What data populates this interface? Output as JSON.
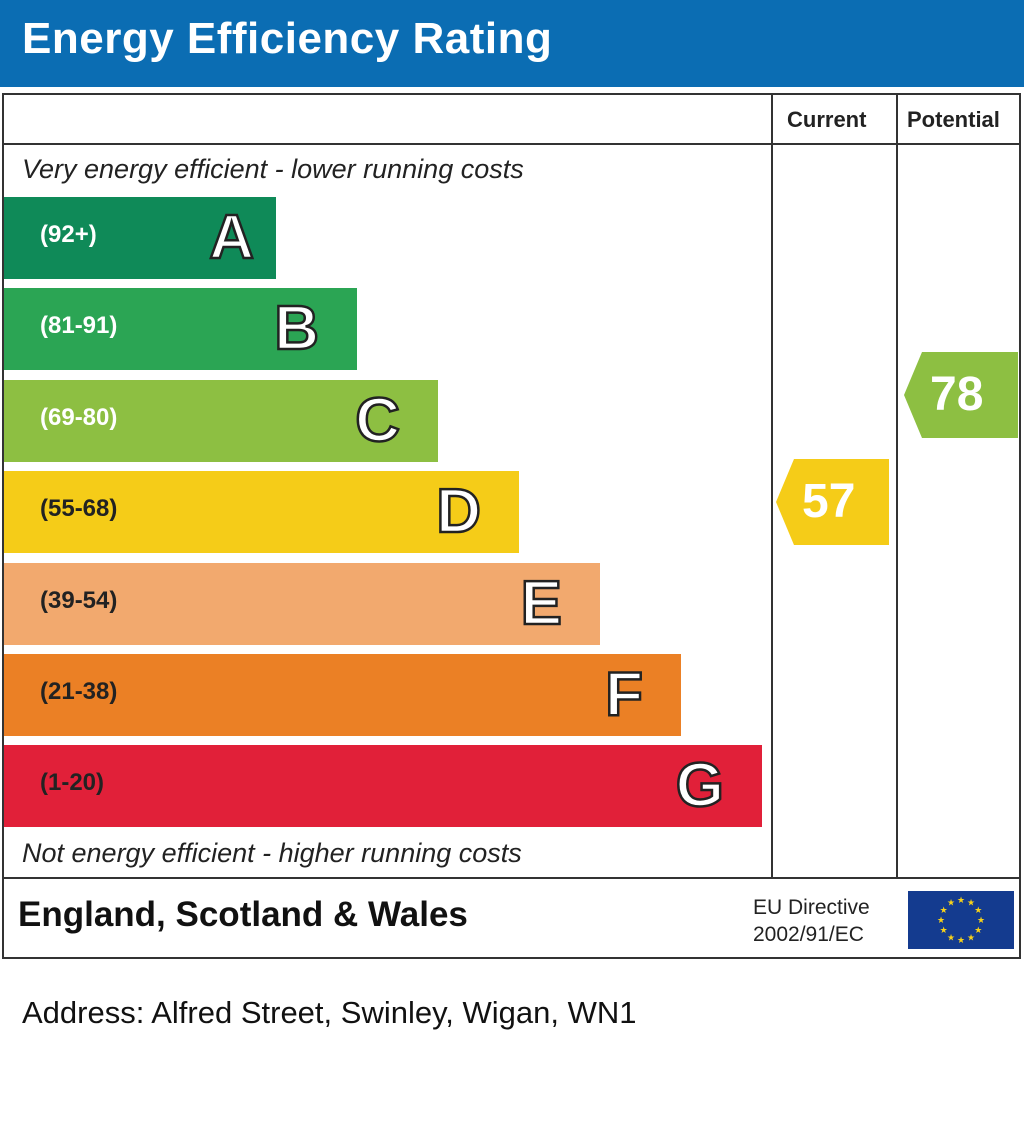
{
  "header": {
    "title": "Energy Efficiency Rating"
  },
  "columns": {
    "current": "Current",
    "potential": "Potential"
  },
  "notes": {
    "top": "Very energy efficient - lower running costs",
    "bottom": "Not energy efficient - higher running costs"
  },
  "footer": {
    "region": "England, Scotland & Wales",
    "directive_line1": "EU Directive",
    "directive_line2": "2002/91/EC",
    "flag_icon": "eu-flag-icon"
  },
  "address": "Address: Alfred Street, Swinley, Wigan, WN1",
  "chart_data": {
    "type": "bar",
    "categories": [
      "A",
      "B",
      "C",
      "D",
      "E",
      "F",
      "G"
    ],
    "ranges": [
      "(92+)",
      "(81-91)",
      "(69-80)",
      "(55-68)",
      "(39-54)",
      "(21-38)",
      "(1-20)"
    ],
    "colors": [
      "#0f8a58",
      "#2ba554",
      "#8dbf42",
      "#f5cc18",
      "#f2a96e",
      "#eb8025",
      "#e12039"
    ],
    "current": {
      "value": 57,
      "band": "D",
      "color": "#f5cc18"
    },
    "potential": {
      "value": 78,
      "band": "C",
      "color": "#8dbf42"
    }
  }
}
